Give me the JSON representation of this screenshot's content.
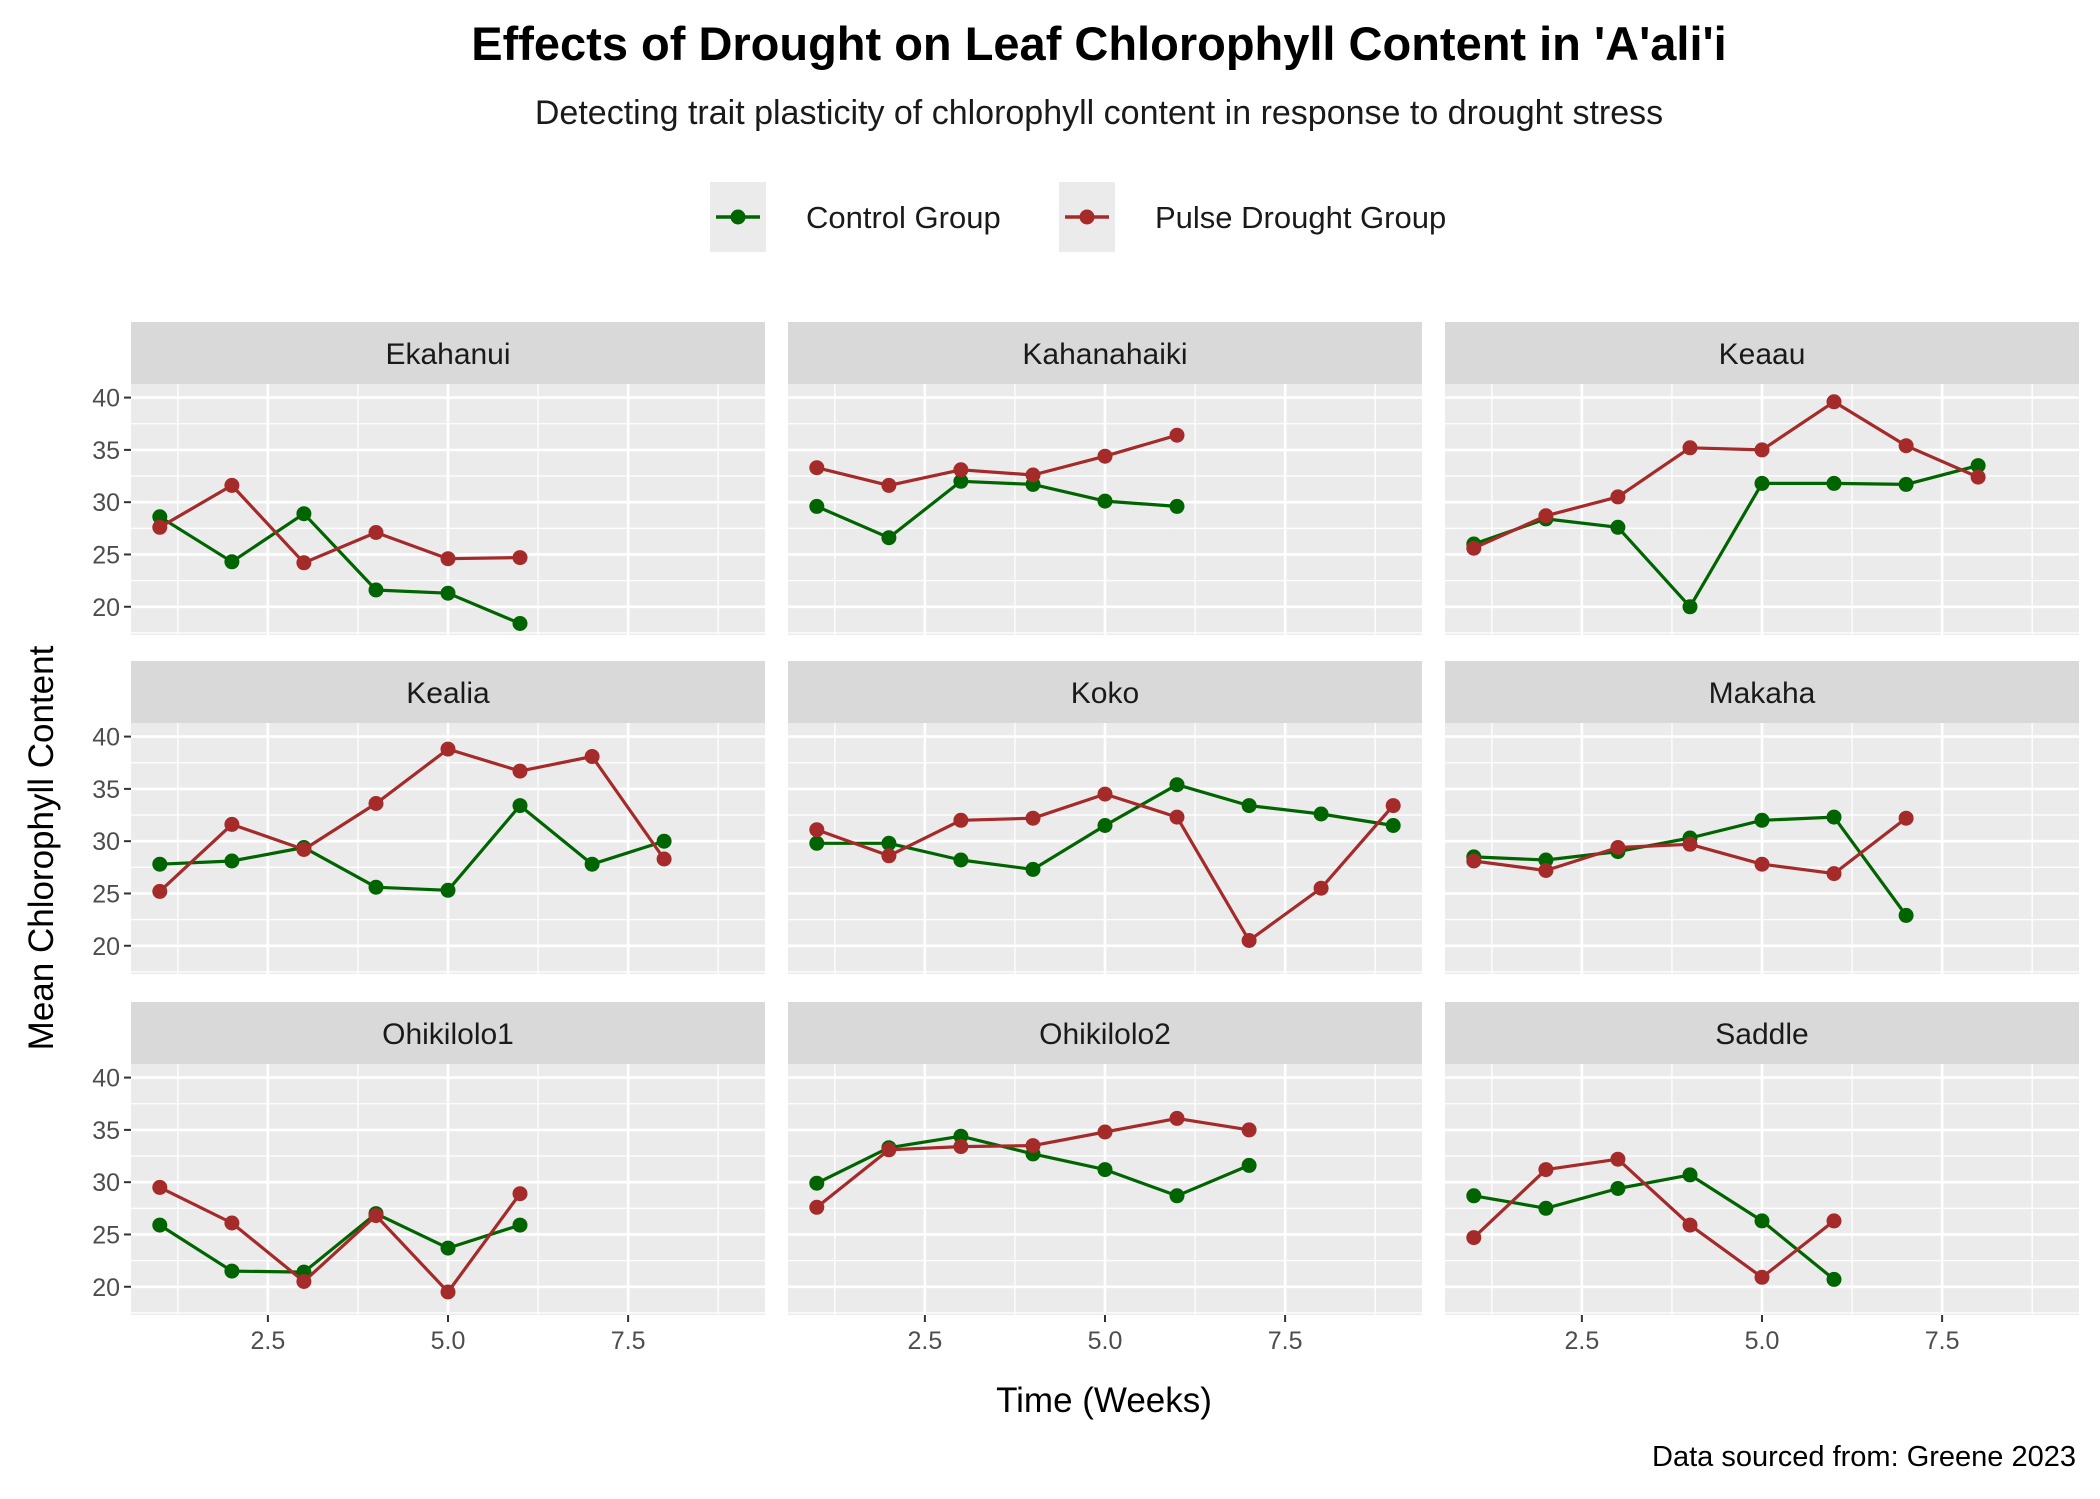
{
  "title": "Effects of Drought on Leaf Chlorophyll Content in 'A'ali'i",
  "subtitle": "Detecting trait plasticity of chlorophyll content in response to drought stress",
  "caption": "Data sourced from: Greene 2023",
  "colors": {
    "control": "#006400",
    "drought": "#A52A2A",
    "panel_bg": "#EBEBEB",
    "strip_bg": "#D9D9D9",
    "grid": "#FFFFFF",
    "legend_key_bg": "#EBEBEB"
  },
  "chart_data": {
    "type": "line",
    "facet_by": "site",
    "xlabel": "Time (Weeks)",
    "ylabel": "Mean Chlorophyll Content",
    "xlim": [
      0.6,
      9.4
    ],
    "ylim": [
      17.3,
      41.3
    ],
    "x_ticks": [
      2.5,
      5.0,
      7.5
    ],
    "x_tick_labels": [
      "2.5",
      "5.0",
      "7.5"
    ],
    "y_ticks": [
      20,
      25,
      30,
      35,
      40
    ],
    "y_tick_labels": [
      "20",
      "25",
      "30",
      "35",
      "40"
    ],
    "grid": true,
    "legend_position": "top",
    "legend": [
      {
        "name": "Control Group",
        "color_key": "control"
      },
      {
        "name": "Pulse Drought Group",
        "color_key": "drought"
      }
    ],
    "panels": [
      {
        "name": "Ekahanui",
        "control": {
          "x": [
            1,
            2,
            3,
            4,
            5,
            6
          ],
          "y": [
            28.6,
            24.3,
            28.9,
            21.6,
            21.3,
            18.4
          ]
        },
        "drought": {
          "x": [
            1,
            2,
            3,
            4,
            5,
            6
          ],
          "y": [
            27.6,
            31.6,
            24.2,
            27.1,
            24.6,
            24.7
          ]
        }
      },
      {
        "name": "Kahanahaiki",
        "control": {
          "x": [
            1,
            2,
            3,
            4,
            5,
            6
          ],
          "y": [
            29.6,
            26.6,
            32.0,
            31.7,
            30.1,
            29.6
          ]
        },
        "drought": {
          "x": [
            1,
            2,
            3,
            4,
            5,
            6
          ],
          "y": [
            33.3,
            31.6,
            33.1,
            32.6,
            34.4,
            36.4
          ]
        }
      },
      {
        "name": "Keaau",
        "control": {
          "x": [
            1,
            2,
            3,
            4,
            5,
            6,
            7,
            8
          ],
          "y": [
            26.0,
            28.4,
            27.6,
            20.0,
            31.8,
            31.8,
            31.7,
            33.5
          ]
        },
        "drought": {
          "x": [
            1,
            2,
            3,
            4,
            5,
            6,
            7,
            8
          ],
          "y": [
            25.6,
            28.7,
            30.5,
            35.2,
            35.0,
            39.6,
            35.4,
            32.4
          ]
        }
      },
      {
        "name": "Kealia",
        "control": {
          "x": [
            1,
            2,
            3,
            4,
            5,
            6,
            7,
            8
          ],
          "y": [
            27.8,
            28.1,
            29.4,
            25.6,
            25.3,
            33.4,
            27.8,
            30.0
          ]
        },
        "drought": {
          "x": [
            1,
            2,
            3,
            4,
            5,
            6,
            7,
            8
          ],
          "y": [
            25.2,
            31.6,
            29.2,
            33.6,
            38.8,
            36.7,
            38.1,
            28.3
          ]
        }
      },
      {
        "name": "Koko",
        "control": {
          "x": [
            1,
            2,
            3,
            4,
            5,
            6,
            7,
            8,
            9
          ],
          "y": [
            29.8,
            29.8,
            28.2,
            27.3,
            31.5,
            35.4,
            33.4,
            32.6,
            31.5
          ]
        },
        "drought": {
          "x": [
            1,
            2,
            3,
            4,
            5,
            6,
            7,
            8,
            9
          ],
          "y": [
            31.1,
            28.6,
            32.0,
            32.2,
            34.5,
            32.3,
            20.5,
            25.5,
            33.4
          ]
        }
      },
      {
        "name": "Makaha",
        "control": {
          "x": [
            1,
            2,
            3,
            4,
            5,
            6,
            7
          ],
          "y": [
            28.5,
            28.2,
            29.0,
            30.3,
            32.0,
            32.3,
            22.9
          ]
        },
        "drought": {
          "x": [
            1,
            2,
            3,
            4,
            5,
            6,
            7
          ],
          "y": [
            28.1,
            27.2,
            29.4,
            29.7,
            27.8,
            26.9,
            32.2
          ]
        }
      },
      {
        "name": "Ohikilolo1",
        "control": {
          "x": [
            1,
            2,
            3,
            4,
            5,
            6
          ],
          "y": [
            25.9,
            21.5,
            21.4,
            27.0,
            23.7,
            25.9
          ]
        },
        "drought": {
          "x": [
            1,
            2,
            3,
            4,
            5,
            6
          ],
          "y": [
            29.5,
            26.1,
            20.5,
            26.8,
            19.5,
            28.9
          ]
        }
      },
      {
        "name": "Ohikilolo2",
        "control": {
          "x": [
            1,
            2,
            3,
            4,
            5,
            6,
            7
          ],
          "y": [
            29.9,
            33.3,
            34.4,
            32.7,
            31.2,
            28.7,
            31.6
          ]
        },
        "drought": {
          "x": [
            1,
            2,
            3,
            4,
            5,
            6,
            7
          ],
          "y": [
            27.6,
            33.1,
            33.4,
            33.5,
            34.8,
            36.1,
            35.0
          ]
        }
      },
      {
        "name": "Saddle",
        "control": {
          "x": [
            1,
            2,
            3,
            4,
            5,
            6
          ],
          "y": [
            28.7,
            27.5,
            29.4,
            30.7,
            26.3,
            20.7
          ]
        },
        "drought": {
          "x": [
            1,
            2,
            3,
            4,
            5,
            6
          ],
          "y": [
            24.7,
            31.2,
            32.2,
            25.9,
            20.9,
            26.3
          ]
        }
      }
    ]
  }
}
